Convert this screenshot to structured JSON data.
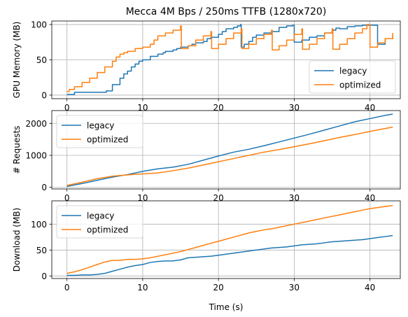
{
  "figure": {
    "title": "Mecca 4M Bps / 250ms TTFB (1280x720)"
  },
  "chart_data": [
    {
      "type": "line",
      "title": "Mecca 4M Bps / 250ms TTFB (1280x720)",
      "xlabel": "",
      "ylabel": "GPU Memory (MB)",
      "xlim": [
        -2,
        44
      ],
      "ylim": [
        -5,
        105
      ],
      "xticks": [
        0,
        10,
        20,
        30,
        40
      ],
      "yticks": [
        0,
        50,
        100
      ],
      "grid": true,
      "legend": "lower-right",
      "series": [
        {
          "name": "legacy",
          "color": "#1f77b4",
          "step": true,
          "x": [
            0,
            1,
            4.8,
            5.2,
            6,
            7,
            7.5,
            8,
            8.5,
            9,
            9.5,
            10,
            11,
            12,
            12.7,
            13,
            14,
            14.5,
            15,
            16,
            16.5,
            17,
            18,
            18.5,
            19,
            20,
            20.5,
            21,
            22,
            22.5,
            22.9,
            23,
            23.4,
            24,
            24.5,
            25,
            26,
            27,
            28,
            29,
            29.8,
            30,
            31,
            32,
            33,
            34,
            35,
            35.5,
            36,
            37,
            38,
            39,
            40,
            41,
            42,
            43
          ],
          "y": [
            1,
            4,
            4,
            6,
            15,
            24,
            30,
            34,
            40,
            44,
            48,
            50,
            55,
            58,
            60,
            62,
            64,
            66,
            68,
            70,
            72,
            74,
            76,
            80,
            82,
            86,
            90,
            94,
            96,
            98,
            100,
            68,
            72,
            76,
            82,
            85,
            88,
            90,
            96,
            98,
            99,
            75,
            78,
            82,
            84,
            88,
            92,
            95,
            94,
            97,
            98,
            99,
            99,
            72,
            80,
            85
          ]
        },
        {
          "name": "optimized",
          "color": "#ff7f0e",
          "step": true,
          "x": [
            0,
            0.3,
            1,
            2,
            3,
            4,
            5,
            6,
            6.5,
            7,
            7.5,
            8,
            9,
            10,
            11,
            11.5,
            12,
            13,
            14,
            15,
            15.1,
            16,
            17,
            18,
            19,
            19.1,
            20,
            21,
            22,
            23,
            23.1,
            24,
            25,
            26,
            27,
            27.1,
            28,
            29,
            30,
            31,
            31.1,
            32,
            33,
            34,
            35,
            35.1,
            36,
            37,
            38,
            39,
            39.6,
            40,
            41,
            42,
            43
          ],
          "y": [
            5,
            8,
            12,
            18,
            24,
            32,
            40,
            48,
            54,
            58,
            60,
            62,
            66,
            68,
            72,
            78,
            84,
            88,
            92,
            98,
            66,
            70,
            78,
            84,
            90,
            66,
            72,
            80,
            88,
            94,
            66,
            72,
            80,
            86,
            92,
            64,
            70,
            78,
            86,
            94,
            65,
            72,
            80,
            88,
            94,
            65,
            72,
            80,
            88,
            94,
            100,
            68,
            74,
            80,
            88
          ]
        }
      ]
    },
    {
      "type": "line",
      "title": "",
      "xlabel": "",
      "ylabel": "# Requests",
      "xlim": [
        -2,
        44
      ],
      "ylim": [
        -50,
        2400
      ],
      "xticks": [
        0,
        10,
        20,
        30,
        40
      ],
      "yticks": [
        0,
        1000,
        2000
      ],
      "grid": true,
      "legend": "upper-left",
      "series": [
        {
          "name": "legacy",
          "color": "#1f77b4",
          "x": [
            0,
            2,
            4,
            6,
            8,
            10,
            12,
            14,
            16,
            18,
            20,
            22,
            24,
            26,
            28,
            30,
            32,
            34,
            36,
            38,
            40,
            42,
            43
          ],
          "y": [
            30,
            120,
            220,
            320,
            400,
            500,
            580,
            630,
            720,
            850,
            980,
            1100,
            1190,
            1300,
            1420,
            1540,
            1660,
            1790,
            1920,
            2050,
            2150,
            2250,
            2290
          ]
        },
        {
          "name": "optimized",
          "color": "#ff7f0e",
          "x": [
            0,
            2,
            4,
            6,
            8,
            10,
            12,
            14,
            16,
            18,
            20,
            22,
            24,
            26,
            28,
            30,
            32,
            34,
            36,
            38,
            40,
            42,
            43
          ],
          "y": [
            60,
            160,
            270,
            350,
            390,
            420,
            450,
            520,
            600,
            700,
            800,
            900,
            1000,
            1100,
            1180,
            1270,
            1360,
            1460,
            1560,
            1650,
            1750,
            1840,
            1880
          ]
        }
      ]
    },
    {
      "type": "line",
      "title": "",
      "xlabel": "Time (s)",
      "ylabel": "Download (MB)",
      "xlim": [
        -2,
        44
      ],
      "ylim": [
        -5,
        145
      ],
      "xticks": [
        0,
        10,
        20,
        30,
        40
      ],
      "yticks": [
        0,
        50,
        100
      ],
      "grid": true,
      "legend": "upper-left",
      "series": [
        {
          "name": "legacy",
          "color": "#1f77b4",
          "x": [
            0,
            1,
            2,
            3,
            4,
            5,
            6,
            7,
            8,
            9,
            10,
            11,
            12,
            13,
            14,
            15,
            16,
            17,
            18,
            19,
            20,
            21,
            22,
            23,
            24,
            25,
            26,
            27,
            28,
            29,
            30,
            31,
            32,
            33,
            34,
            35,
            36,
            37,
            38,
            39,
            40,
            41,
            42,
            43
          ],
          "y": [
            1,
            1,
            2,
            2,
            3,
            5,
            9,
            13,
            17,
            20,
            22,
            26,
            28,
            29,
            29,
            31,
            35,
            36,
            37,
            38,
            40,
            42,
            44,
            46,
            48,
            50,
            52,
            54,
            55,
            56,
            58,
            60,
            61,
            62,
            64,
            66,
            67,
            68,
            69,
            70,
            72,
            74,
            76,
            78
          ]
        },
        {
          "name": "optimized",
          "color": "#ff7f0e",
          "x": [
            0,
            1,
            2,
            3,
            4,
            5,
            6,
            7,
            8,
            9,
            10,
            11,
            12,
            13,
            14,
            15,
            16,
            17,
            18,
            19,
            20,
            21,
            22,
            23,
            24,
            25,
            26,
            27,
            28,
            29,
            30,
            31,
            32,
            33,
            34,
            35,
            36,
            37,
            38,
            39,
            40,
            41,
            42,
            43
          ],
          "y": [
            5,
            8,
            12,
            17,
            22,
            27,
            30,
            30,
            32,
            32,
            33,
            35,
            38,
            41,
            44,
            47,
            51,
            55,
            59,
            63,
            67,
            71,
            75,
            79,
            83,
            86,
            89,
            91,
            94,
            97,
            100,
            103,
            106,
            109,
            112,
            115,
            118,
            121,
            124,
            127,
            130,
            132,
            134,
            136
          ]
        }
      ]
    }
  ]
}
